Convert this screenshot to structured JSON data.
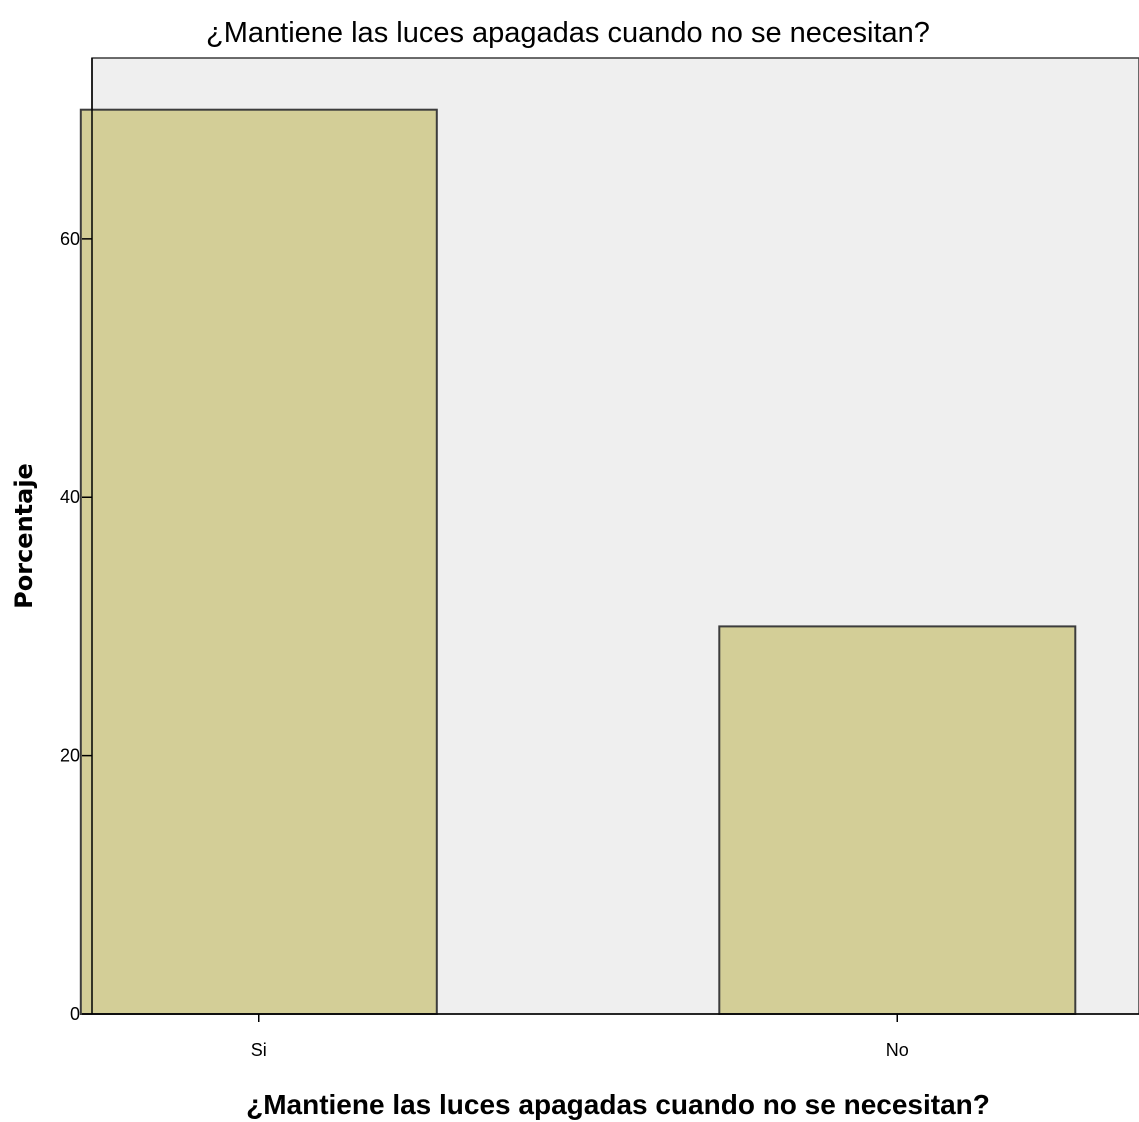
{
  "chart_data": {
    "type": "bar",
    "title": "¿Mantiene las luces apagadas cuando no se necesitan?",
    "xlabel": "¿Mantiene las luces apagadas cuando no se necesitan?",
    "ylabel": "Porcentaje",
    "categories": [
      "Si",
      "No"
    ],
    "values": [
      70.0,
      30.0
    ],
    "ylim": [
      0,
      74
    ],
    "yticks": [
      0,
      20,
      40,
      60
    ],
    "grid": false,
    "colors": {
      "plot_background": "#efefef",
      "bar_fill": "#d3ce97",
      "bar_stroke": "#3c3c3c"
    }
  }
}
